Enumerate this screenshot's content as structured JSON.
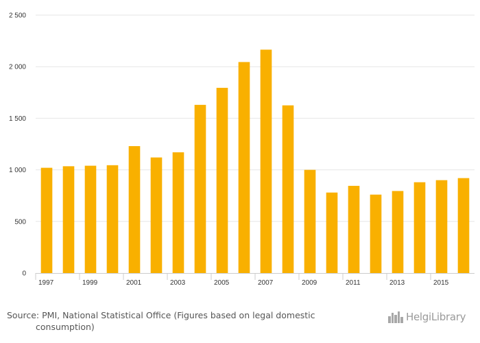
{
  "chart_data": {
    "type": "bar",
    "categories": [
      "1997",
      "1998",
      "1999",
      "2000",
      "2001",
      "2002",
      "2003",
      "2004",
      "2005",
      "2006",
      "2007",
      "2008",
      "2009",
      "2010",
      "2011",
      "2012",
      "2013",
      "2014",
      "2015",
      "2016"
    ],
    "values": [
      1020,
      1035,
      1040,
      1045,
      1230,
      1120,
      1170,
      1630,
      1795,
      2045,
      2165,
      1625,
      1000,
      780,
      845,
      760,
      795,
      880,
      900,
      920
    ],
    "x_tick_labels": [
      "1997",
      "1999",
      "2001",
      "2003",
      "2005",
      "2007",
      "2009",
      "2011",
      "2013",
      "2015"
    ],
    "y_tick_labels": [
      "0",
      "500",
      "1 000",
      "1 500",
      "2 000",
      "2 500"
    ],
    "y_ticks": [
      0,
      500,
      1000,
      1500,
      2000,
      2500
    ],
    "ylim": [
      0,
      2500
    ],
    "title": "",
    "xlabel": "",
    "ylabel": "",
    "grid": true,
    "bar_color": "#f9b000",
    "grid_color": "#e6e6e6"
  },
  "footer": {
    "source": "Source: PMI, National Statistical Office (Figures based on legal domestic consumption)",
    "brand": "HelgiLibrary",
    "brand_icon": "city-skyline-icon"
  }
}
